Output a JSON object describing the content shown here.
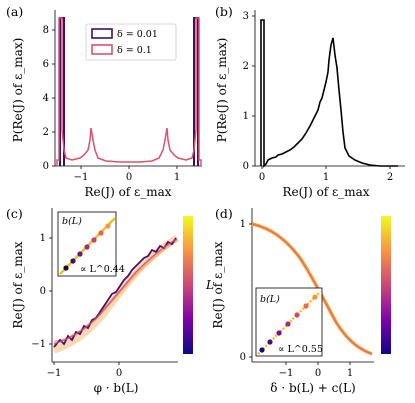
{
  "panels": {
    "a": {
      "label": "(a)",
      "xlabel": "Re(J) of ε_max",
      "ylabel": "P(Re(J) of ε_max)",
      "xticks": [
        "−1",
        "0",
        "1"
      ],
      "yticks": [
        "0",
        "2",
        "4",
        "6",
        "8"
      ],
      "legend": [
        "δ = 0.01",
        "δ = 0.1"
      ]
    },
    "b": {
      "label": "(b)",
      "xlabel": "Re(J) of ε_max",
      "ylabel": "P(Re(J) of ε_max)",
      "xticks": [
        "0",
        "1",
        "2"
      ],
      "yticks": [
        "0",
        "1",
        "2",
        "3"
      ]
    },
    "c": {
      "label": "(c)",
      "xlabel": "φ · b(L)",
      "ylabel": "Re(J) of ε_max",
      "xticks": [
        "−1",
        "0"
      ],
      "yticks": [
        "−1",
        "0",
        "1"
      ],
      "inset_label": "b(L)",
      "inset_annot": "∝ L^0.44",
      "colorbar_label": "L"
    },
    "d": {
      "label": "(d)",
      "xlabel": "δ · b(L) + c(L)",
      "ylabel": "Re(J) of ε_max",
      "xticks": [
        "−1",
        "0",
        "1"
      ],
      "yticks": [
        "0",
        "1"
      ],
      "inset_label": "b(L)",
      "inset_annot": "∝ L^0.55",
      "colorbar_label": "L"
    }
  },
  "colors": {
    "dark": "#3b0f70",
    "pink": "#e0506a",
    "orange": "#f5a040"
  },
  "chart_data": [
    {
      "type": "line",
      "panel": "a",
      "xlabel": "Re(J) of ε_max",
      "ylabel": "P(Re(J) of ε_max)",
      "xlim": [
        -1.5,
        1.5
      ],
      "ylim": [
        0,
        9
      ],
      "series": [
        {
          "name": "δ = 0.01",
          "x": [
            -1.4,
            -1.35,
            1.35,
            1.4
          ],
          "values": [
            8.8,
            8.8,
            8.8,
            8.8
          ]
        },
        {
          "name": "δ = 0.1",
          "x": [
            -1.5,
            -1.4,
            -1.3,
            -1.2,
            -1.0,
            -0.8,
            -0.72,
            -0.65,
            -0.55,
            -0.3,
            0,
            0.3,
            0.55,
            0.65,
            0.72,
            0.8,
            1.0,
            1.2,
            1.3,
            1.4,
            1.5
          ],
          "values": [
            0.1,
            8.8,
            1.2,
            0.6,
            0.3,
            0.7,
            2.2,
            0.9,
            0.4,
            0.3,
            0.25,
            0.3,
            0.4,
            0.9,
            2.2,
            0.7,
            0.3,
            0.6,
            1.2,
            8.8,
            0.1
          ]
        }
      ]
    },
    {
      "type": "line",
      "panel": "b",
      "xlabel": "Re(J) of ε_max",
      "ylabel": "P(Re(J) of ε_max)",
      "xlim": [
        -0.1,
        2.0
      ],
      "ylim": [
        0,
        3
      ],
      "series": [
        {
          "x": [
            0,
            0.02,
            0.1,
            0.2,
            0.3,
            0.4,
            0.5,
            0.6,
            0.7,
            0.78,
            0.85,
            0.9,
            1.0,
            1.1,
            1.2,
            1.35
          ],
          "values": [
            2.9,
            0.05,
            0.3,
            0.4,
            0.5,
            0.65,
            0.9,
            1.3,
            1.9,
            2.55,
            2.3,
            1.6,
            0.6,
            0.25,
            0.1,
            0.02
          ]
        }
      ]
    },
    {
      "type": "line",
      "panel": "c",
      "xlabel": "φ · b(L)",
      "ylabel": "Re(J) of ε_max",
      "xlim": [
        -1,
        0.9
      ],
      "ylim": [
        -1.3,
        1.4
      ],
      "x": [
        -1,
        -0.8,
        -0.6,
        -0.4,
        -0.2,
        0,
        0.2,
        0.4,
        0.6,
        0.8,
        0.9
      ],
      "values": [
        -1.0,
        -0.9,
        -0.75,
        -0.55,
        -0.28,
        0.0,
        0.28,
        0.55,
        0.75,
        0.9,
        0.97
      ]
    },
    {
      "type": "line",
      "panel": "d",
      "xlabel": "δ · b(L) + c(L)",
      "ylabel": "Re(J) of ε_max",
      "xlim": [
        -1.6,
        1.3
      ],
      "ylim": [
        -0.05,
        1.05
      ],
      "x": [
        -1.6,
        -1.2,
        -0.8,
        -0.4,
        0,
        0.4,
        0.8,
        1.0,
        1.3
      ],
      "values": [
        1.0,
        0.95,
        0.85,
        0.68,
        0.48,
        0.28,
        0.12,
        0.07,
        0.03
      ]
    }
  ]
}
